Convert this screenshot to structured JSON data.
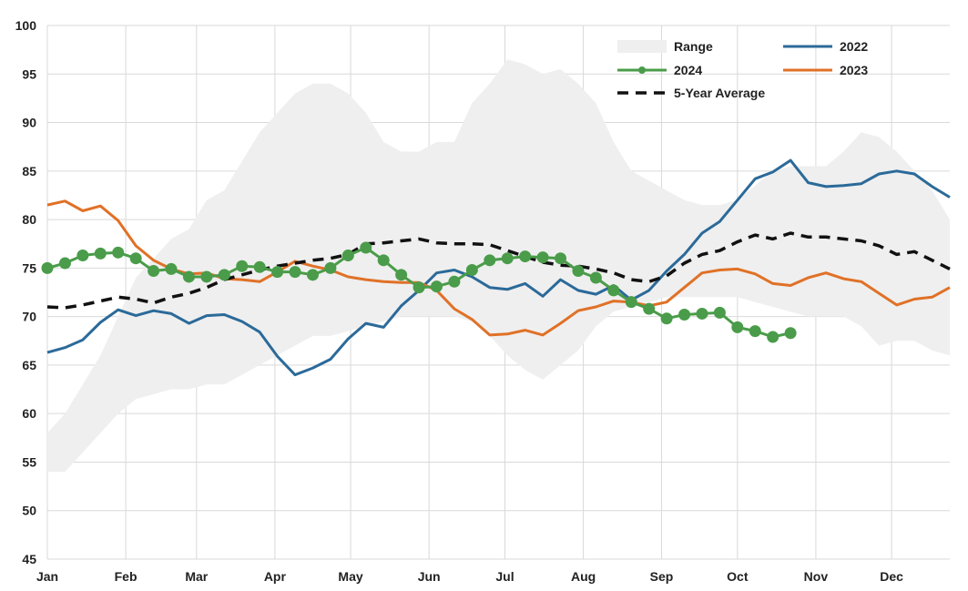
{
  "chart_data": {
    "type": "line",
    "title": "",
    "xlabel": "",
    "ylabel": "",
    "ylim": [
      45,
      100
    ],
    "yticks": [
      45,
      50,
      55,
      60,
      65,
      70,
      75,
      80,
      85,
      90,
      95,
      100
    ],
    "xlim": [
      1,
      52
    ],
    "month_ticks": [
      {
        "label": "Jan",
        "week": 1
      },
      {
        "label": "Feb",
        "week": 5.43
      },
      {
        "label": "Mar",
        "week": 9.43
      },
      {
        "label": "Apr",
        "week": 13.86
      },
      {
        "label": "May",
        "week": 18.14
      },
      {
        "label": "Jun",
        "week": 22.57
      },
      {
        "label": "Jul",
        "week": 26.86
      },
      {
        "label": "Aug",
        "week": 31.29
      },
      {
        "label": "Sep",
        "week": 35.71
      },
      {
        "label": "Oct",
        "week": 40.0
      },
      {
        "label": "Nov",
        "week": 44.43
      },
      {
        "label": "Dec",
        "week": 48.71
      }
    ],
    "grid": true,
    "legend_position": "top-right",
    "range": {
      "name": "Range",
      "color": "#efefef",
      "upper": [
        58,
        60,
        63,
        66,
        70,
        74,
        76,
        78,
        79,
        82,
        83,
        86,
        89,
        91,
        93,
        94,
        94,
        93,
        91,
        88,
        87,
        87,
        88,
        88,
        92,
        94,
        96.5,
        96,
        95,
        95.5,
        94,
        92,
        88,
        85,
        84,
        83,
        82,
        81.5,
        81.5,
        82,
        83.5,
        85,
        85.5,
        85.5,
        85.5,
        87,
        89,
        88.5,
        87,
        85,
        83,
        80
      ],
      "lower": [
        54,
        54,
        56,
        58,
        60,
        61.5,
        62,
        62.5,
        62.5,
        63,
        63,
        64,
        65,
        66,
        67,
        68,
        68,
        68.5,
        69,
        69.5,
        70,
        70,
        70,
        70,
        69.5,
        68,
        66,
        64.5,
        63.5,
        65,
        66.5,
        69,
        70.5,
        71,
        71.5,
        72,
        72,
        72,
        72,
        72,
        71.5,
        71,
        70.5,
        70,
        70,
        70,
        69,
        67,
        67.5,
        67.5,
        66.5,
        66
      ]
    },
    "series": [
      {
        "name": "2022",
        "color": "#2b6a99",
        "values": [
          66.3,
          66.8,
          67.6,
          69.4,
          70.7,
          70.1,
          70.6,
          70.3,
          69.3,
          70.1,
          70.2,
          69.5,
          68.4,
          65.9,
          64.0,
          64.7,
          65.6,
          67.7,
          69.3,
          68.9,
          71.1,
          72.7,
          74.5,
          74.8,
          74.1,
          73.0,
          72.8,
          73.4,
          72.1,
          73.8,
          72.7,
          72.3,
          73.2,
          71.7,
          72.7,
          74.7,
          76.4,
          78.6,
          79.8,
          82.0,
          84.2,
          84.9,
          86.1,
          83.8,
          83.4,
          83.5,
          83.7,
          84.7,
          85.0,
          84.7,
          83.4,
          82.3
        ]
      },
      {
        "name": "2023",
        "color": "#e07127",
        "values": [
          81.5,
          81.9,
          80.9,
          81.4,
          79.9,
          77.3,
          75.8,
          74.9,
          74.4,
          74.5,
          73.9,
          73.8,
          73.6,
          74.6,
          75.7,
          75.2,
          74.8,
          74.1,
          73.8,
          73.6,
          73.5,
          73.5,
          72.7,
          70.8,
          69.7,
          68.1,
          68.2,
          68.6,
          68.1,
          69.3,
          70.6,
          71.0,
          71.6,
          71.5,
          71.1,
          71.5,
          73.0,
          74.5,
          74.8,
          74.9,
          74.4,
          73.4,
          73.2,
          74.0,
          74.5,
          73.9,
          73.6,
          72.4,
          71.2,
          71.8,
          72.0,
          73.0
        ]
      },
      {
        "name": "2024",
        "color": "#4a9c4a",
        "values": [
          75.0,
          75.5,
          76.3,
          76.5,
          76.6,
          76.0,
          74.7,
          74.9,
          74.1,
          74.1,
          74.3,
          75.2,
          75.1,
          74.6,
          74.6,
          74.3,
          75.0,
          76.3,
          77.1,
          75.8,
          74.3,
          73.0,
          73.1,
          73.6,
          74.8,
          75.8,
          76.0,
          76.2,
          76.1,
          76.0,
          74.7,
          74.0,
          72.7,
          71.5,
          70.8,
          69.8,
          70.2,
          70.3,
          70.4,
          68.9,
          68.5,
          67.9,
          68.3
        ]
      },
      {
        "name": "5-Year Average",
        "color": "#111111",
        "dashed": true,
        "values": [
          71.0,
          70.9,
          71.2,
          71.6,
          72.0,
          71.8,
          71.4,
          72.0,
          72.4,
          73.0,
          73.8,
          74.3,
          74.8,
          75.2,
          75.5,
          75.8,
          76.0,
          76.4,
          77.5,
          77.6,
          77.8,
          78.0,
          77.6,
          77.5,
          77.5,
          77.4,
          76.8,
          76.2,
          75.6,
          75.3,
          75.2,
          74.9,
          74.5,
          73.8,
          73.6,
          74.2,
          75.5,
          76.4,
          76.8,
          77.7,
          78.4,
          78.0,
          78.6,
          78.2,
          78.2,
          78.0,
          77.8,
          77.3,
          76.4,
          76.7,
          75.8,
          74.9
        ]
      }
    ],
    "legend": [
      {
        "label": "Range",
        "kind": "area",
        "color": "#efefef"
      },
      {
        "label": "2022",
        "kind": "line",
        "color": "#2b6a99"
      },
      {
        "label": "2024",
        "kind": "line-marker",
        "color": "#4a9c4a"
      },
      {
        "label": "2023",
        "kind": "line",
        "color": "#e07127"
      },
      {
        "label": "5-Year Average",
        "kind": "dashed",
        "color": "#111111"
      }
    ]
  }
}
